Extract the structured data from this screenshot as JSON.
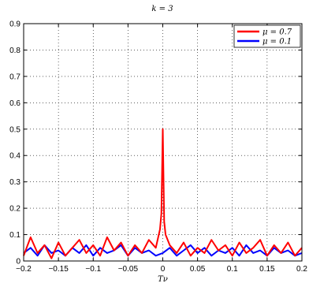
{
  "chart_data": {
    "type": "line",
    "title": "k = 3",
    "xlabel": "Tν",
    "ylabel": "",
    "xlim": [
      -0.2,
      0.2
    ],
    "ylim": [
      0,
      0.9
    ],
    "xticks": [
      -0.2,
      -0.15,
      -0.1,
      -0.05,
      0,
      0.05,
      0.1,
      0.15,
      0.2
    ],
    "xtick_labels": [
      "−0.2",
      "−0.15",
      "−0.1",
      "−0.05",
      "0",
      "0.05",
      "0.1",
      "0.15",
      "0.2"
    ],
    "yticks": [
      0,
      0.1,
      0.2,
      0.3,
      0.4,
      0.5,
      0.6,
      0.7,
      0.8,
      0.9
    ],
    "ytick_labels": [
      "0",
      "0.1",
      "0.2",
      "0.3",
      "0.4",
      "0.5",
      "0.6",
      "0.7",
      "0.8",
      "0.9"
    ],
    "grid": true,
    "legend_position": "top-right",
    "series": [
      {
        "name": "μ = 0.7",
        "color": "#ff0000",
        "x": [
          -0.2,
          -0.19,
          -0.18,
          -0.17,
          -0.16,
          -0.15,
          -0.14,
          -0.13,
          -0.12,
          -0.11,
          -0.1,
          -0.09,
          -0.08,
          -0.07,
          -0.06,
          -0.05,
          -0.04,
          -0.03,
          -0.02,
          -0.01,
          -0.004,
          -0.002,
          0,
          0.002,
          0.004,
          0.01,
          0.02,
          0.03,
          0.04,
          0.05,
          0.06,
          0.07,
          0.08,
          0.09,
          0.1,
          0.11,
          0.12,
          0.13,
          0.14,
          0.15,
          0.16,
          0.17,
          0.18,
          0.19,
          0.2
        ],
        "y": [
          0.02,
          0.09,
          0.03,
          0.06,
          0.01,
          0.07,
          0.02,
          0.05,
          0.08,
          0.03,
          0.06,
          0.02,
          0.09,
          0.04,
          0.07,
          0.02,
          0.06,
          0.03,
          0.08,
          0.05,
          0.12,
          0.18,
          0.5,
          0.15,
          0.1,
          0.06,
          0.03,
          0.07,
          0.02,
          0.05,
          0.03,
          0.08,
          0.04,
          0.06,
          0.02,
          0.07,
          0.03,
          0.05,
          0.08,
          0.02,
          0.06,
          0.03,
          0.07,
          0.02,
          0.05
        ]
      },
      {
        "name": "μ = 0.1",
        "color": "#0000ff",
        "x": [
          -0.2,
          -0.19,
          -0.18,
          -0.17,
          -0.16,
          -0.15,
          -0.14,
          -0.13,
          -0.12,
          -0.11,
          -0.1,
          -0.09,
          -0.08,
          -0.07,
          -0.06,
          -0.05,
          -0.04,
          -0.03,
          -0.02,
          -0.01,
          0,
          0.01,
          0.02,
          0.03,
          0.04,
          0.05,
          0.06,
          0.07,
          0.08,
          0.09,
          0.1,
          0.11,
          0.12,
          0.13,
          0.14,
          0.15,
          0.16,
          0.17,
          0.18,
          0.19,
          0.2
        ],
        "y": [
          0.03,
          0.05,
          0.02,
          0.06,
          0.03,
          0.04,
          0.02,
          0.05,
          0.03,
          0.06,
          0.02,
          0.05,
          0.03,
          0.04,
          0.06,
          0.02,
          0.05,
          0.03,
          0.04,
          0.02,
          0.03,
          0.05,
          0.02,
          0.04,
          0.06,
          0.03,
          0.05,
          0.02,
          0.04,
          0.03,
          0.05,
          0.02,
          0.06,
          0.03,
          0.04,
          0.02,
          0.05,
          0.03,
          0.04,
          0.02,
          0.03
        ]
      }
    ]
  }
}
